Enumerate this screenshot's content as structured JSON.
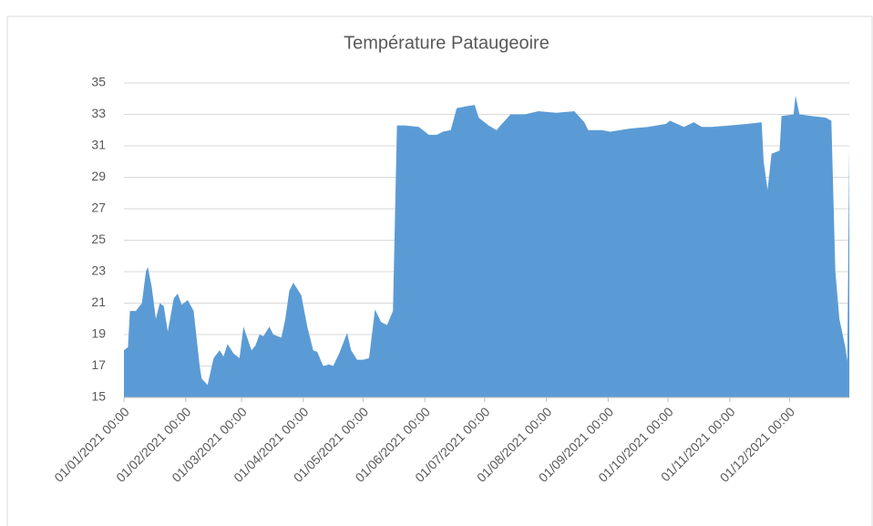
{
  "chart_data": {
    "type": "area",
    "title": "Température Pataugeoire",
    "x": [
      "2021-01-01",
      "2021-01-03",
      "2021-01-04",
      "2021-01-07",
      "2021-01-10",
      "2021-01-12",
      "2021-01-13",
      "2021-01-15",
      "2021-01-17",
      "2021-01-19",
      "2021-01-21",
      "2021-01-23",
      "2021-01-26",
      "2021-01-28",
      "2021-01-30",
      "2021-02-02",
      "2021-02-05",
      "2021-02-08",
      "2021-02-09",
      "2021-02-12",
      "2021-02-15",
      "2021-02-18",
      "2021-02-20",
      "2021-02-22",
      "2021-02-25",
      "2021-02-28",
      "2021-03-02",
      "2021-03-06",
      "2021-03-08",
      "2021-03-10",
      "2021-03-12",
      "2021-03-15",
      "2021-03-17",
      "2021-03-21",
      "2021-03-23",
      "2021-03-25",
      "2021-03-27",
      "2021-03-31",
      "2021-04-03",
      "2021-04-06",
      "2021-04-08",
      "2021-04-11",
      "2021-04-14",
      "2021-04-16",
      "2021-04-19",
      "2021-04-23",
      "2021-04-25",
      "2021-04-28",
      "2021-05-01",
      "2021-05-04",
      "2021-05-07",
      "2021-05-10",
      "2021-05-13",
      "2021-05-16",
      "2021-05-18",
      "2021-05-22",
      "2021-05-29",
      "2021-06-03",
      "2021-06-07",
      "2021-06-10",
      "2021-06-14",
      "2021-06-17",
      "2021-06-21",
      "2021-06-26",
      "2021-06-28",
      "2021-07-03",
      "2021-07-07",
      "2021-07-09",
      "2021-07-14",
      "2021-07-21",
      "2021-07-28",
      "2021-08-06",
      "2021-08-15",
      "2021-08-20",
      "2021-08-22",
      "2021-08-29",
      "2021-09-02",
      "2021-09-12",
      "2021-09-21",
      "2021-09-30",
      "2021-10-02",
      "2021-10-09",
      "2021-10-14",
      "2021-10-18",
      "2021-10-23",
      "2021-11-01",
      "2021-11-10",
      "2021-11-17",
      "2021-11-18",
      "2021-11-20",
      "2021-11-22",
      "2021-11-26",
      "2021-11-27",
      "2021-12-03",
      "2021-12-04",
      "2021-12-06",
      "2021-12-12",
      "2021-12-19",
      "2021-12-22",
      "2021-12-24",
      "2021-12-26",
      "2021-12-29",
      "2021-12-30",
      "2021-12-31"
    ],
    "values": [
      18.0,
      18.2,
      20.5,
      20.5,
      21,
      23,
      23.3,
      22,
      20,
      21,
      20.8,
      19.2,
      21.3,
      21.6,
      20.9,
      21.2,
      20.5,
      17,
      16.2,
      15.8,
      17.5,
      18,
      17.6,
      18.4,
      17.8,
      17.5,
      19.5,
      18,
      18.3,
      19,
      18.9,
      19.5,
      19,
      18.8,
      20,
      21.8,
      22.3,
      21.5,
      19.5,
      18,
      17.9,
      17,
      17.1,
      17,
      17.8,
      19.1,
      18,
      17.4,
      17.4,
      17.5,
      20.6,
      19.8,
      19.6,
      20.5,
      32.3,
      32.3,
      32.2,
      31.7,
      31.7,
      31.9,
      32,
      33.4,
      33.5,
      33.6,
      32.8,
      32.3,
      32,
      32.3,
      33,
      33,
      33.2,
      33.1,
      33.2,
      32.5,
      32,
      32,
      31.9,
      32.1,
      32.2,
      32.4,
      32.6,
      32.2,
      32.5,
      32.2,
      32.2,
      32.3,
      32.4,
      32.5,
      30,
      28.2,
      30.5,
      30.7,
      32.9,
      33,
      34.2,
      33,
      32.9,
      32.8,
      32.6,
      23,
      20,
      18.2,
      17.3,
      31
    ],
    "color": "#5b9bd5",
    "xlim": [
      "2021-01-01",
      "2021-12-31"
    ],
    "xticks": [
      {
        "value": "2021-01-01",
        "label": "01/01/2021 00:00"
      },
      {
        "value": "2021-02-01",
        "label": "01/02/2021 00:00"
      },
      {
        "value": "2021-03-01",
        "label": "01/03/2021 00:00"
      },
      {
        "value": "2021-04-01",
        "label": "01/04/2021 00:00"
      },
      {
        "value": "2021-05-01",
        "label": "01/05/2021 00:00"
      },
      {
        "value": "2021-06-01",
        "label": "01/06/2021 00:00"
      },
      {
        "value": "2021-07-01",
        "label": "01/07/2021 00:00"
      },
      {
        "value": "2021-08-01",
        "label": "01/08/2021 00:00"
      },
      {
        "value": "2021-09-01",
        "label": "01/09/2021 00:00"
      },
      {
        "value": "2021-10-01",
        "label": "01/10/2021 00:00"
      },
      {
        "value": "2021-11-01",
        "label": "01/11/2021 00:00"
      },
      {
        "value": "2021-12-01",
        "label": "01/12/2021 00:00"
      }
    ],
    "ylim": [
      15,
      35
    ],
    "yticks": [
      15,
      17,
      19,
      21,
      23,
      25,
      27,
      29,
      31,
      33,
      35
    ],
    "grid": true
  }
}
